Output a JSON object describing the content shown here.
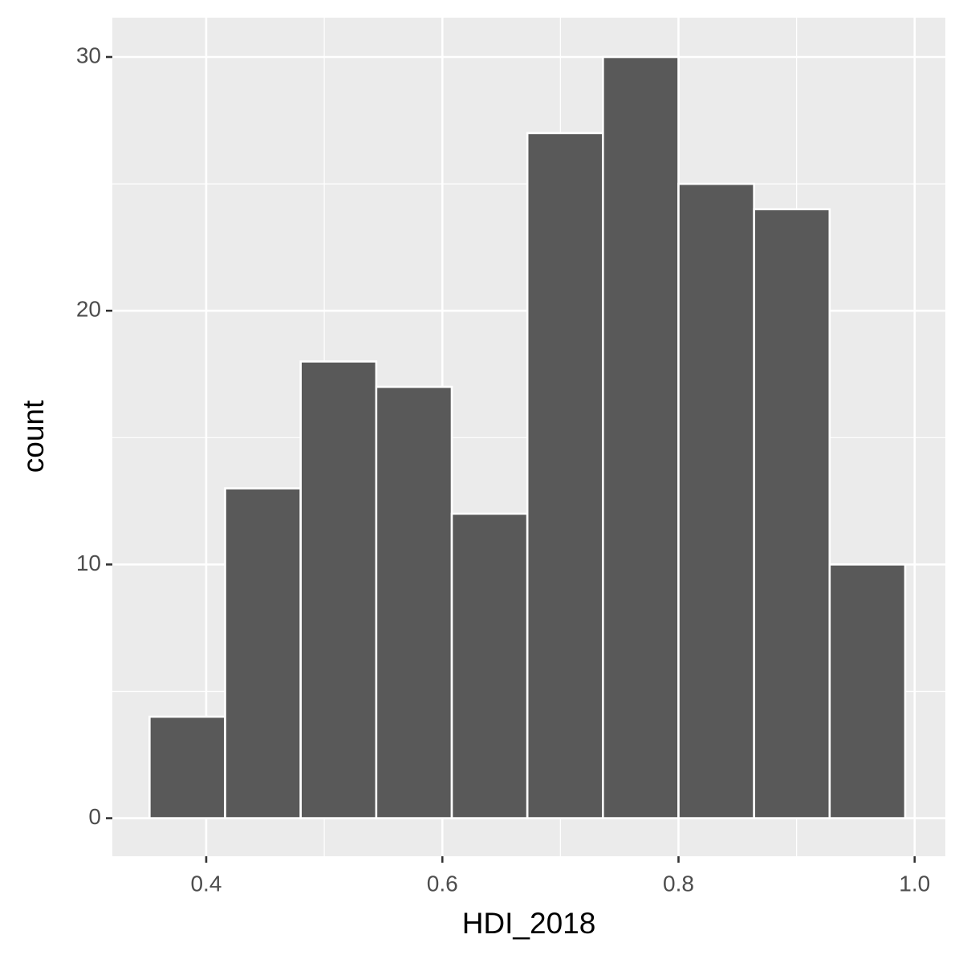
{
  "chart_data": {
    "type": "histogram",
    "x_label": "HDI_2018",
    "y_label": "count",
    "bins": [
      0.352,
      0.416,
      0.48,
      0.544,
      0.608,
      0.672,
      0.736,
      0.8,
      0.864,
      0.928,
      0.992
    ],
    "values": [
      4,
      13,
      18,
      17,
      12,
      27,
      30,
      25,
      24,
      10
    ],
    "color": "#595959",
    "edge_color": "#ffffff",
    "xlim": [
      0.3205,
      1.026
    ],
    "ylim": [
      -1.5,
      31.55
    ],
    "xticks": [
      0.4,
      0.6,
      0.8,
      {
        "value": 1,
        "label": "1.0"
      }
    ],
    "yticks": [
      0,
      10,
      20,
      30
    ],
    "x_minor_grid": [
      0.5,
      0.7,
      0.9
    ],
    "y_minor_grid": [
      5,
      15,
      25
    ],
    "grid": true
  }
}
